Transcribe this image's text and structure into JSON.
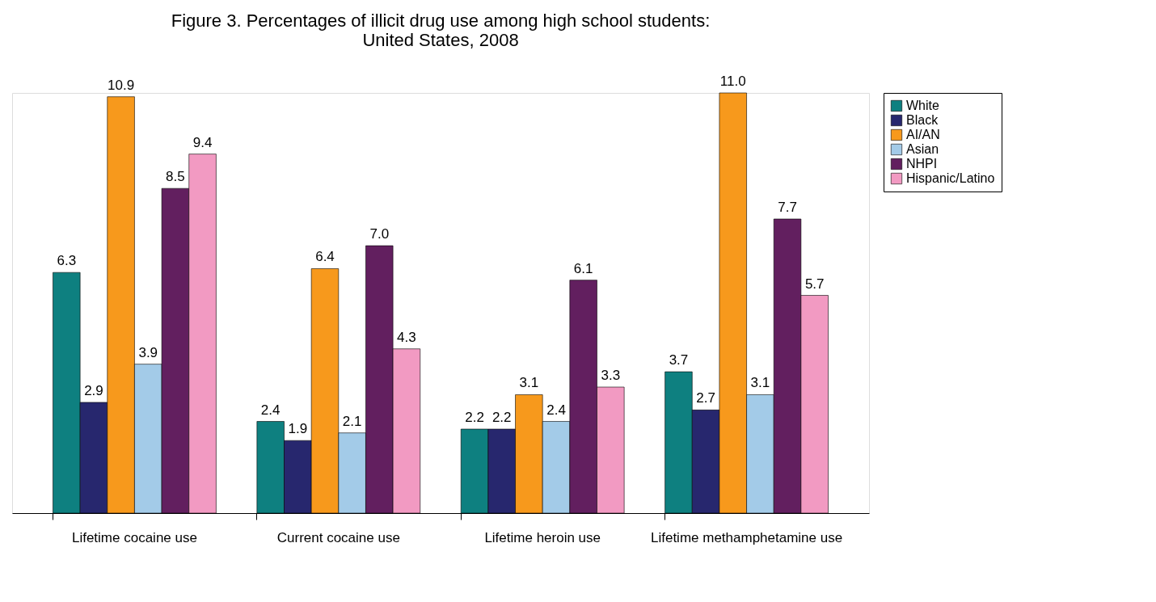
{
  "chart_data": {
    "type": "bar",
    "title": "Figure 3. Percentages of illicit drug use among high school students: United States, 2008",
    "categories": [
      "Lifetime cocaine use",
      "Current cocaine use",
      "Lifetime heroin use",
      "Lifetime methamphetamine use"
    ],
    "series": [
      {
        "name": "White",
        "color": "#0e8080",
        "values": [
          6.3,
          2.4,
          2.2,
          3.7
        ],
        "value_labels": [
          "6.3",
          "2.4",
          "2.2",
          "3.7"
        ]
      },
      {
        "name": "Black",
        "color": "#27276e",
        "values": [
          2.9,
          1.9,
          2.2,
          2.7
        ],
        "value_labels": [
          "2.9",
          "1.9",
          "2.2",
          "2.7"
        ]
      },
      {
        "name": "AI/AN",
        "color": "#f7991c",
        "values": [
          10.9,
          6.4,
          3.1,
          11
        ],
        "value_labels": [
          "10.9",
          "6.4",
          "3.1",
          "11.0"
        ]
      },
      {
        "name": "Asian",
        "color": "#a3cbe8",
        "values": [
          3.9,
          2.1,
          2.4,
          3.1
        ],
        "value_labels": [
          "3.9",
          "2.1",
          "2.4",
          "3.1"
        ]
      },
      {
        "name": "NHPI",
        "color": "#621f5f",
        "values": [
          8.5,
          7,
          6.1,
          7.7
        ],
        "value_labels": [
          "8.5",
          "7.0",
          "6.1",
          "7.7"
        ]
      },
      {
        "name": "Hispanic/Latino",
        "color": "#f29ac2",
        "values": [
          9.4,
          4.3,
          3.3,
          5.7
        ],
        "value_labels": [
          "9.4",
          "4.3",
          "3.3",
          "5.7"
        ]
      }
    ],
    "legend": "top right",
    "grid": false
  }
}
